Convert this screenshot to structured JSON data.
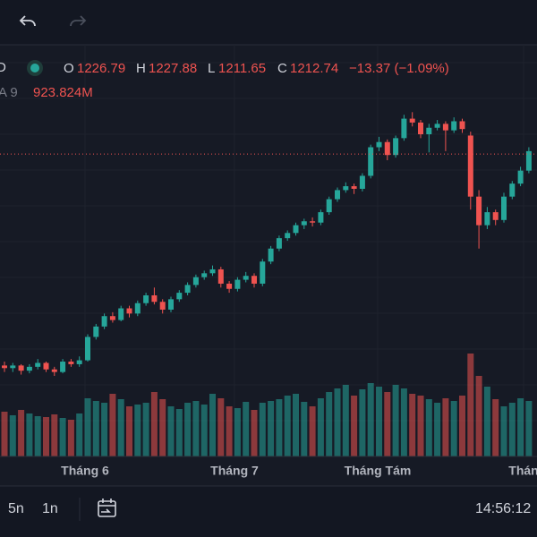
{
  "header": {
    "symbol": "D"
  },
  "legend": {
    "open_label": "O",
    "open": "1226.79",
    "high_label": "H",
    "high": "1227.88",
    "low_label": "L",
    "low": "1211.65",
    "close_label": "C",
    "close": "1212.74",
    "change": "−13.37 (−1.09%)",
    "ma_label": "A 9",
    "ma_value": "923.824M"
  },
  "footer": {
    "range_5d": "5n",
    "range_1m": "1n",
    "clock": "14:56:12"
  },
  "chart_data": {
    "type": "candlestick",
    "up_color": "#26a69a",
    "down_color": "#ef5350",
    "ylim": [
      980,
      1290
    ],
    "vlim": [
      0,
      4500
    ],
    "last_price": 1212.74,
    "x_labels": [
      "Tháng 6",
      "Tháng 7",
      "Tháng Tám",
      "Thán"
    ],
    "candles": [
      [
        1050,
        1053,
        1045,
        1048
      ],
      [
        1048,
        1052,
        1045,
        1050
      ],
      [
        1050,
        1051,
        1043,
        1046
      ],
      [
        1046,
        1051,
        1044,
        1049
      ],
      [
        1049,
        1055,
        1047,
        1052
      ],
      [
        1052,
        1053,
        1045,
        1047
      ],
      [
        1047,
        1049,
        1042,
        1045
      ],
      [
        1045,
        1055,
        1044,
        1053
      ],
      [
        1053,
        1055,
        1049,
        1051
      ],
      [
        1051,
        1057,
        1049,
        1054
      ],
      [
        1054,
        1074,
        1053,
        1072
      ],
      [
        1072,
        1082,
        1070,
        1080
      ],
      [
        1080,
        1090,
        1078,
        1088
      ],
      [
        1088,
        1091,
        1083,
        1085
      ],
      [
        1085,
        1096,
        1084,
        1094
      ],
      [
        1094,
        1096,
        1087,
        1090
      ],
      [
        1090,
        1100,
        1088,
        1098
      ],
      [
        1098,
        1106,
        1096,
        1104
      ],
      [
        1104,
        1110,
        1097,
        1099
      ],
      [
        1099,
        1101,
        1090,
        1093
      ],
      [
        1093,
        1103,
        1091,
        1101
      ],
      [
        1101,
        1108,
        1099,
        1106
      ],
      [
        1106,
        1114,
        1104,
        1112
      ],
      [
        1112,
        1120,
        1110,
        1118
      ],
      [
        1118,
        1123,
        1116,
        1121
      ],
      [
        1121,
        1127,
        1119,
        1124
      ],
      [
        1124,
        1126,
        1110,
        1113
      ],
      [
        1113,
        1115,
        1106,
        1109
      ],
      [
        1109,
        1118,
        1107,
        1116
      ],
      [
        1116,
        1122,
        1114,
        1119
      ],
      [
        1119,
        1121,
        1110,
        1113
      ],
      [
        1113,
        1132,
        1111,
        1130
      ],
      [
        1130,
        1142,
        1128,
        1140
      ],
      [
        1140,
        1150,
        1138,
        1148
      ],
      [
        1148,
        1154,
        1146,
        1152
      ],
      [
        1152,
        1160,
        1150,
        1158
      ],
      [
        1158,
        1163,
        1155,
        1161
      ],
      [
        1161,
        1164,
        1157,
        1160
      ],
      [
        1160,
        1170,
        1158,
        1168
      ],
      [
        1168,
        1180,
        1166,
        1178
      ],
      [
        1178,
        1187,
        1176,
        1185
      ],
      [
        1185,
        1191,
        1183,
        1188
      ],
      [
        1188,
        1190,
        1182,
        1186
      ],
      [
        1186,
        1198,
        1184,
        1196
      ],
      [
        1196,
        1220,
        1194,
        1218
      ],
      [
        1218,
        1226,
        1215,
        1222
      ],
      [
        1222,
        1224,
        1208,
        1212
      ],
      [
        1212,
        1227,
        1210,
        1225
      ],
      [
        1225,
        1243,
        1223,
        1240
      ],
      [
        1240,
        1245,
        1234,
        1237
      ],
      [
        1237,
        1239,
        1225,
        1228
      ],
      [
        1228,
        1236,
        1214,
        1233
      ],
      [
        1233,
        1239,
        1231,
        1236
      ],
      [
        1236,
        1238,
        1215,
        1231
      ],
      [
        1231,
        1241,
        1229,
        1238
      ],
      [
        1238,
        1240,
        1229,
        1232
      ],
      [
        1227,
        1230,
        1170,
        1180
      ],
      [
        1180,
        1185,
        1140,
        1158
      ],
      [
        1158,
        1172,
        1155,
        1168
      ],
      [
        1168,
        1170,
        1158,
        1162
      ],
      [
        1162,
        1183,
        1160,
        1180
      ],
      [
        1180,
        1192,
        1178,
        1190
      ],
      [
        1190,
        1203,
        1188,
        1200
      ],
      [
        1200,
        1218,
        1198,
        1215
      ]
    ],
    "volumes": [
      500,
      460,
      520,
      480,
      450,
      440,
      470,
      430,
      410,
      480,
      650,
      620,
      600,
      700,
      640,
      560,
      580,
      600,
      720,
      640,
      560,
      530,
      600,
      620,
      580,
      700,
      650,
      560,
      540,
      610,
      520,
      600,
      620,
      640,
      680,
      700,
      610,
      560,
      650,
      720,
      760,
      800,
      680,
      750,
      820,
      780,
      720,
      800,
      760,
      700,
      680,
      640,
      600,
      650,
      620,
      680,
      1150,
      900,
      780,
      640,
      560,
      600,
      650,
      620
    ]
  }
}
